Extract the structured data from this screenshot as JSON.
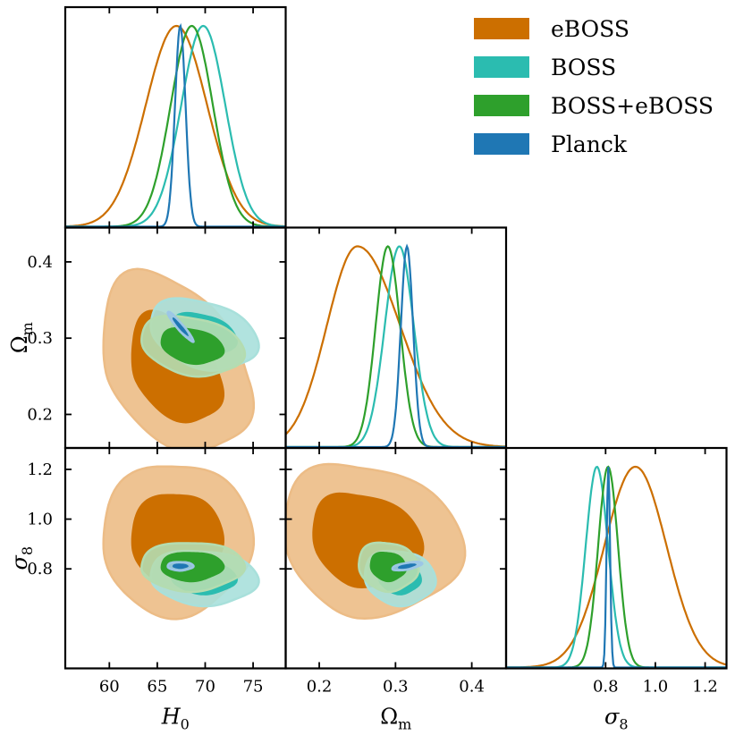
{
  "chart_data": {
    "type": "corner",
    "parameters": [
      {
        "key": "H0",
        "label": "H",
        "sub": "0",
        "range": [
          55.4,
          78.4
        ],
        "ticks": [
          60,
          65,
          70,
          75
        ],
        "tick_labels": [
          "60",
          "65",
          "70",
          "75"
        ]
      },
      {
        "key": "Om",
        "label": "Ω",
        "sub": "m",
        "range": [
          0.156,
          0.445
        ],
        "ticks": [
          0.2,
          0.3,
          0.4
        ],
        "tick_labels": [
          "0.2",
          "0.3",
          "0.4"
        ]
      },
      {
        "key": "s8",
        "label": "σ",
        "sub": "8",
        "range": [
          0.4,
          1.286
        ],
        "ticks": [
          0.8,
          1.0,
          1.2
        ],
        "tick_labels": [
          "0.8",
          "1.0",
          "1.2"
        ]
      }
    ],
    "legend": [
      {
        "name": "eBOSS",
        "color": "#cc6f00"
      },
      {
        "name": "BOSS",
        "color": "#2bbcb0"
      },
      {
        "name": "BOSS+eBOSS",
        "color": "#2ea02c"
      },
      {
        "name": "Planck",
        "color": "#1f77b4"
      }
    ],
    "series": [
      {
        "name": "eBOSS",
        "key": "eboss",
        "color": "#cc6f00",
        "light": "#ecbc86",
        "mean": {
          "H0": 67.0,
          "Om": 0.25,
          "s8": 0.92
        },
        "sigma": {
          "H0": 3.2,
          "Om": 0.04,
          "s8": 0.125
        },
        "skew": {
          "Om": 0.8
        },
        "corr": {
          "H0_Om": -0.35,
          "H0_s8": 0.0,
          "Om_s8": -0.15
        }
      },
      {
        "name": "BOSS",
        "key": "boss",
        "color": "#2bbcb0",
        "light": "#a8e0db",
        "mean": {
          "H0": 69.8,
          "Om": 0.305,
          "s8": 0.765
        },
        "sigma": {
          "H0": 2.3,
          "Om": 0.019,
          "s8": 0.045
        },
        "skew": {},
        "corr": {
          "H0_Om": -0.3,
          "H0_s8": -0.1,
          "Om_s8": -0.1
        }
      },
      {
        "name": "BOSS+eBOSS",
        "key": "bosseboss",
        "color": "#2ea02c",
        "light": "#b4dcb0",
        "mean": {
          "H0": 68.6,
          "Om": 0.29,
          "s8": 0.81
        },
        "sigma": {
          "H0": 2.2,
          "Om": 0.016,
          "s8": 0.04
        },
        "skew": {},
        "corr": {
          "H0_Om": -0.25,
          "H0_s8": 0.0,
          "Om_s8": -0.1
        }
      },
      {
        "name": "Planck",
        "key": "planck",
        "color": "#1f77b4",
        "light": "#9cc6e6",
        "mean": {
          "H0": 67.4,
          "Om": 0.315,
          "s8": 0.811
        },
        "sigma": {
          "H0": 0.55,
          "Om": 0.008,
          "s8": 0.007
        },
        "skew": {},
        "corr": {
          "H0_Om": -0.95,
          "H0_s8": 0.0,
          "Om_s8": 0.6
        }
      }
    ]
  }
}
